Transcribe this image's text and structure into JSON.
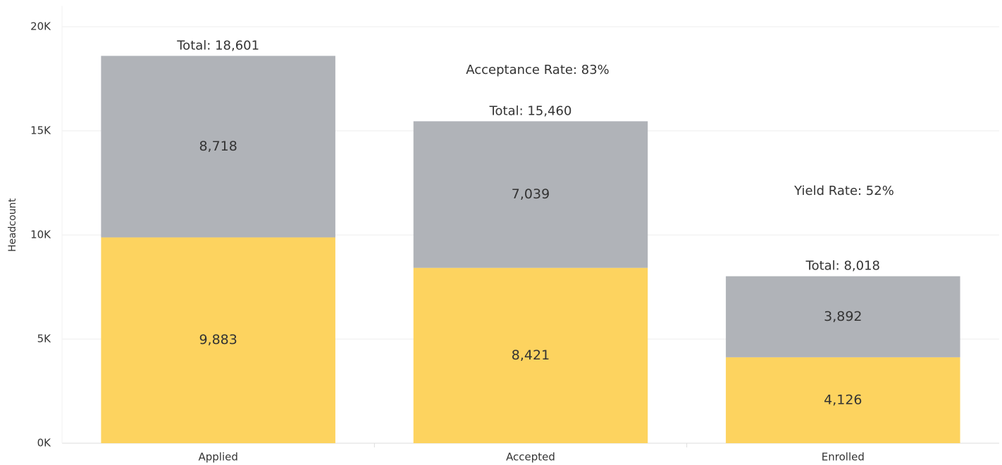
{
  "chart_data": {
    "type": "stacked_bar",
    "y_label": "Headcount",
    "categories": [
      "Applied",
      "Accepted",
      "Enrolled"
    ],
    "series": [
      {
        "color": "#fdd35f",
        "values": [
          9883,
          8421,
          4126
        ],
        "value_labels": [
          "9,883",
          "8,421",
          "4,126"
        ]
      },
      {
        "color": "#b0b3b8",
        "values": [
          8718,
          7039,
          3892
        ],
        "value_labels": [
          "8,718",
          "7,039",
          "3,892"
        ]
      }
    ],
    "totals": [
      18601,
      15460,
      8018
    ],
    "total_labels": [
      "Total: 18,601",
      "Total: 15,460",
      "Total: 8,018"
    ],
    "annotations": [
      "Acceptance Rate: 83%",
      "Yield Rate: 52%"
    ],
    "ylim": [
      0,
      21000
    ],
    "yticks": [
      {
        "value": 0,
        "label": "0K"
      },
      {
        "value": 5000,
        "label": "5K"
      },
      {
        "value": 10000,
        "label": "10K"
      },
      {
        "value": 15000,
        "label": "15K"
      },
      {
        "value": 20000,
        "label": "20K"
      }
    ],
    "grid": true
  }
}
